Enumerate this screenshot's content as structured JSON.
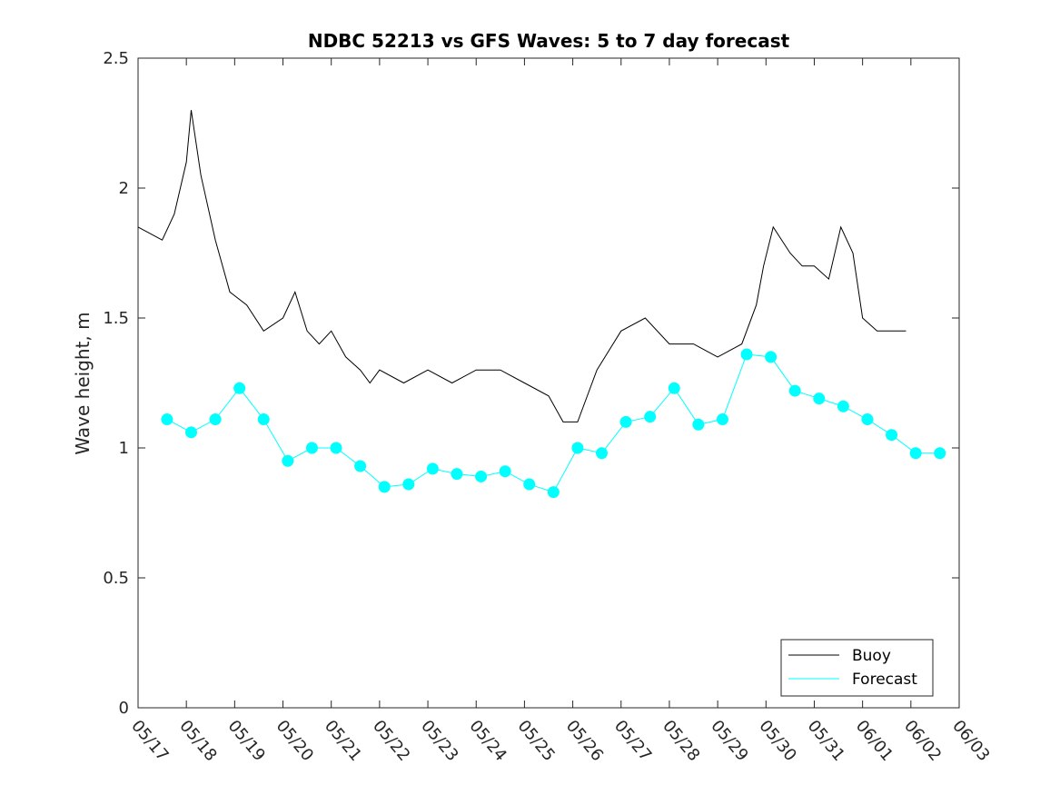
{
  "chart_data": {
    "type": "line",
    "title": "NDBC 52213 vs GFS Waves: 5 to 7 day forecast",
    "ylabel": "Wave height, m",
    "xlabel": "",
    "ylim": [
      0,
      2.5
    ],
    "xlim_days": [
      0,
      17
    ],
    "x_ticks": [
      "05/17",
      "05/18",
      "05/19",
      "05/20",
      "05/21",
      "05/22",
      "05/23",
      "05/24",
      "05/25",
      "05/26",
      "05/27",
      "05/28",
      "05/29",
      "05/30",
      "05/31",
      "06/01",
      "06/02",
      "06/03"
    ],
    "y_ticks": [
      0,
      0.5,
      1,
      1.5,
      2,
      2.5
    ],
    "legend": {
      "position": "bottom-right",
      "entries": [
        "Buoy",
        "Forecast"
      ]
    },
    "colors": {
      "buoy": "#000000",
      "forecast": "#00ffff"
    },
    "buoy_series": {
      "name": "Buoy",
      "x": [
        0,
        0.5,
        0.75,
        1,
        1.1,
        1.3,
        1.6,
        1.9,
        2.25,
        2.6,
        3.0,
        3.25,
        3.5,
        3.75,
        4.0,
        4.3,
        4.6,
        4.8,
        5.0,
        5.5,
        6.0,
        6.5,
        7.0,
        7.5,
        8.0,
        8.5,
        8.8,
        9.1,
        9.5,
        10.0,
        10.5,
        11.0,
        11.5,
        12.0,
        12.5,
        12.8,
        12.95,
        13.15,
        13.5,
        13.75,
        14.0,
        14.3,
        14.55,
        14.8,
        15.0,
        15.3,
        15.6,
        15.9
      ],
      "y": [
        1.85,
        1.8,
        1.9,
        2.1,
        2.3,
        2.05,
        1.8,
        1.6,
        1.55,
        1.45,
        1.5,
        1.6,
        1.45,
        1.4,
        1.45,
        1.35,
        1.3,
        1.25,
        1.3,
        1.25,
        1.3,
        1.25,
        1.3,
        1.3,
        1.25,
        1.2,
        1.1,
        1.1,
        1.3,
        1.45,
        1.5,
        1.4,
        1.4,
        1.35,
        1.4,
        1.55,
        1.7,
        1.85,
        1.75,
        1.7,
        1.7,
        1.65,
        1.85,
        1.75,
        1.5,
        1.45,
        1.45,
        1.45
      ]
    },
    "forecast_series": {
      "name": "Forecast",
      "x": [
        0.6,
        1.1,
        1.6,
        2.1,
        2.6,
        3.1,
        3.6,
        4.1,
        4.6,
        5.1,
        5.6,
        6.1,
        6.6,
        7.1,
        7.6,
        8.1,
        8.6,
        9.1,
        9.6,
        10.1,
        10.6,
        11.1,
        11.6,
        12.1,
        12.6,
        13.1,
        13.6,
        14.1,
        14.6,
        15.1,
        15.6,
        16.1,
        16.6
      ],
      "y": [
        1.11,
        1.06,
        1.11,
        1.23,
        1.11,
        0.95,
        1.0,
        1.0,
        0.93,
        0.85,
        0.86,
        0.92,
        0.9,
        0.89,
        0.91,
        0.86,
        0.83,
        1.0,
        0.98,
        1.1,
        1.12,
        1.23,
        1.09,
        1.11,
        1.36,
        1.35,
        1.22,
        1.19,
        1.16,
        1.11,
        1.05,
        0.98,
        0.98
      ]
    }
  }
}
